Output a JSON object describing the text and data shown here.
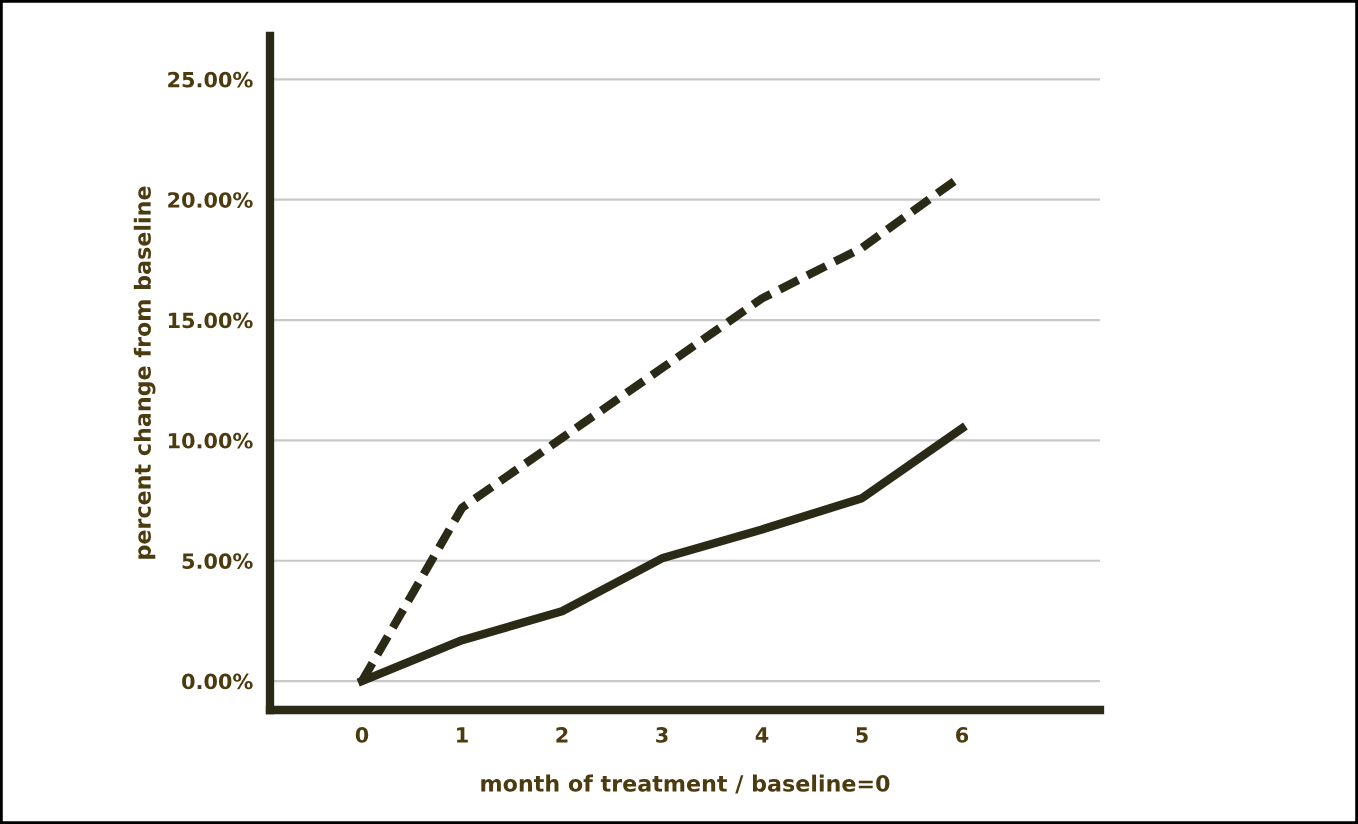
{
  "chart_data": {
    "type": "line",
    "xlabel": "month of treatment / baseline=0",
    "ylabel": "percent change from baseline",
    "x": [
      0,
      1,
      2,
      3,
      4,
      5,
      6
    ],
    "series": [
      {
        "color": "#2b2a17",
        "line_style": "dashed",
        "values": [
          0,
          7.2,
          10.1,
          13.0,
          15.9,
          18.0,
          21.0
        ]
      },
      {
        "color": "#2b2a17",
        "line_style": "solid",
        "values": [
          0,
          1.7,
          2.9,
          5.1,
          6.3,
          7.6,
          10.5
        ]
      }
    ],
    "xlim": [
      -0.92,
      7.38
    ],
    "ylim": [
      -1.2,
      26.8
    ],
    "xticks": [
      0,
      1,
      2,
      3,
      4,
      5,
      6
    ],
    "yticks": [
      {
        "value": 0,
        "label": "0.00%"
      },
      {
        "value": 5,
        "label": "5.00%"
      },
      {
        "value": 10,
        "label": "10.00%"
      },
      {
        "value": 15,
        "label": "15.00%"
      },
      {
        "value": 20,
        "label": "20.00%"
      },
      {
        "value": 25,
        "label": "25.00%"
      }
    ],
    "grid": "y",
    "legend": false,
    "marker": "none"
  }
}
